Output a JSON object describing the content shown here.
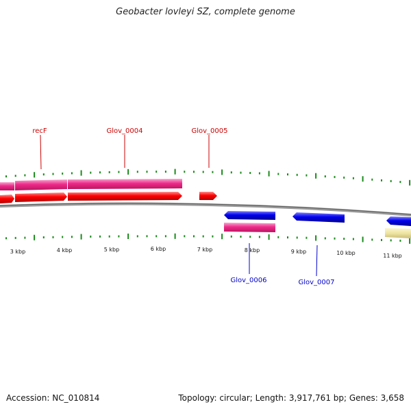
{
  "title": "Geobacter lovleyi SZ, complete genome",
  "footer": {
    "accession": "Accession: NC_010814",
    "summary": "Topology: circular; Length: 3,917,761 bp; Genes: 3,658"
  },
  "ruler": {
    "labels": [
      "3 kbp",
      "4 kbp",
      "5 kbp",
      "6 kbp",
      "7 kbp",
      "8 kbp",
      "9 kbp",
      "10 kbp",
      "11 kbp"
    ]
  },
  "gene_labels": {
    "recF": "recF",
    "glov_0004": "Glov_0004",
    "glov_0005": "Glov_0005",
    "glov_0006": "Glov_0006",
    "glov_0007": "Glov_0007"
  },
  "colors": {
    "forward_cds": "#ff0000",
    "reverse_cds": "#0000ee",
    "forward_gene": "#ee2a8a",
    "reverse_gene": "#ee2a8a",
    "other_feature": "#f0e6a0",
    "tick": "#1a8a1a",
    "backbone": "#888888",
    "label_forward": "#cc0000",
    "label_reverse": "#0000cc"
  }
}
